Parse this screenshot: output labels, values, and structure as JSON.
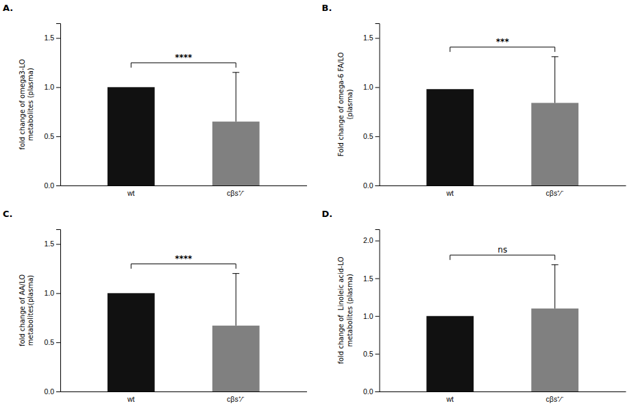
{
  "chart_data": [
    {
      "type": "bar",
      "title": "A.",
      "y_label": "fold change of omega3-LO\nmetabolites (plasma)",
      "categories": [
        "wt",
        "cβs⁺∕⁻"
      ],
      "values": [
        1.0,
        0.65
      ],
      "errors_upper": [
        0.0,
        0.5
      ],
      "colors": [
        "#111111",
        "#808080"
      ],
      "ylim": [
        0,
        1.65
      ],
      "yticks": [
        {
          "value": 0.0,
          "label": "0.0"
        },
        0.5,
        {
          "value": 1.0,
          "label": "1.0"
        },
        1.5
      ],
      "annotations": [
        "****"
      ],
      "grid": false
    },
    {
      "type": "bar",
      "title": "B.",
      "y_label": "Fold change of omega-6 FA/LO\n(plasma)",
      "categories": [
        "wt",
        "cβs⁺∕⁻"
      ],
      "values": [
        0.98,
        0.84
      ],
      "errors_upper": [
        0.0,
        0.47
      ],
      "colors": [
        "#111111",
        "#808080"
      ],
      "ylim": [
        0,
        1.65
      ],
      "yticks": [
        {
          "value": 0.0,
          "label": "0.0"
        },
        0.5,
        {
          "value": 1.0,
          "label": "1.0"
        },
        1.5
      ],
      "annotations": [
        "***"
      ],
      "grid": false
    },
    {
      "type": "bar",
      "title": "C.",
      "y_label": "fold change of AA/LO\nmetabolites(plasma)",
      "categories": [
        "wt",
        "cβs⁺∕⁻"
      ],
      "values": [
        1.0,
        0.67
      ],
      "errors_upper": [
        0.0,
        0.53
      ],
      "colors": [
        "#111111",
        "#808080"
      ],
      "ylim": [
        0,
        1.65
      ],
      "yticks": [
        {
          "value": 0.0,
          "label": "0.0"
        },
        0.5,
        {
          "value": 1.0,
          "label": "1.0"
        },
        1.5
      ],
      "annotations": [
        "****"
      ],
      "grid": false
    },
    {
      "type": "bar",
      "title": "D.",
      "y_label": "fold change of  Linoleic acid-LO\nmetabolites (plasma)",
      "categories": [
        "wt",
        "cβs⁺∕⁻"
      ],
      "values": [
        1.0,
        1.1
      ],
      "errors_upper": [
        0.0,
        0.58
      ],
      "colors": [
        "#111111",
        "#808080"
      ],
      "ylim": [
        0,
        2.15
      ],
      "yticks": [
        {
          "value": 0.0,
          "label": "0.0"
        },
        0.5,
        {
          "value": 1.0,
          "label": "1.0"
        },
        1.5,
        {
          "value": 2.0,
          "label": "2.0"
        }
      ],
      "annotations": [
        "ns"
      ],
      "grid": false
    }
  ]
}
